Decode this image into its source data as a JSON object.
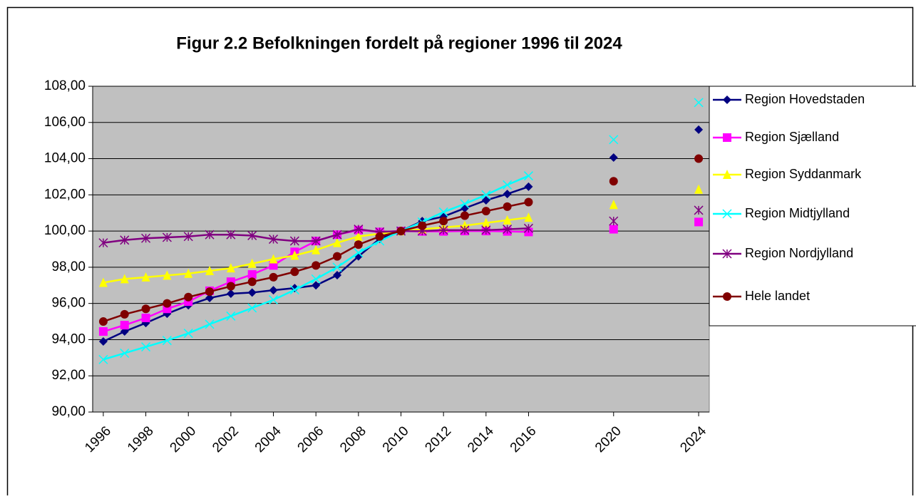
{
  "chart_data": {
    "type": "line",
    "title": "Figur 2.2 Befolkningen fordelt på regioner 1996 til 2024",
    "x": [
      1996,
      1997,
      1998,
      1999,
      2000,
      2001,
      2002,
      2003,
      2004,
      2005,
      2006,
      2007,
      2008,
      2009,
      2010,
      2011,
      2012,
      2013,
      2014,
      2015,
      2016,
      2018,
      2020,
      2022,
      2024
    ],
    "xlim": [
      1995.5,
      2024.5
    ],
    "xticks": [
      1996,
      1998,
      2000,
      2002,
      2004,
      2006,
      2008,
      2010,
      2012,
      2014,
      2016,
      2020,
      2024
    ],
    "ylim": [
      90,
      108
    ],
    "yticks": [
      {
        "value": 90,
        "label": "90,00"
      },
      {
        "value": 92,
        "label": "92,00"
      },
      {
        "value": 94,
        "label": "94,00"
      },
      {
        "value": 96,
        "label": "96,00"
      },
      {
        "value": 98,
        "label": "98,00"
      },
      {
        "value": 100,
        "label": "100,00"
      },
      {
        "value": 102,
        "label": "102,00"
      },
      {
        "value": 104,
        "label": "104,00"
      },
      {
        "value": 106,
        "label": "106,00"
      },
      {
        "value": 108,
        "label": "108,00"
      }
    ],
    "grid": true,
    "legend": "right",
    "series": [
      {
        "name": "Region Hovedstaden",
        "color": "#000080",
        "marker": "diamond",
        "values": [
          93.9,
          94.45,
          94.92,
          95.43,
          95.9,
          96.3,
          96.54,
          96.6,
          96.73,
          96.85,
          97.0,
          97.56,
          98.6,
          99.57,
          100,
          100.55,
          100.8,
          101.26,
          101.7,
          102.05,
          102.45,
          null,
          104.06,
          null,
          105.6
        ]
      },
      {
        "name": "Region Sjælland",
        "color": "#ff00ff",
        "marker": "square",
        "values": [
          94.45,
          94.8,
          95.2,
          95.7,
          96.1,
          96.7,
          97.2,
          97.6,
          98.1,
          98.85,
          99.45,
          99.8,
          100.05,
          99.95,
          100,
          99.98,
          99.98,
          100.0,
          100.0,
          99.98,
          99.95,
          null,
          100.1,
          null,
          100.5
        ]
      },
      {
        "name": "Region Syddanmark",
        "color": "#ffff00",
        "marker": "triangle",
        "values": [
          97.15,
          97.35,
          97.45,
          97.55,
          97.65,
          97.8,
          97.95,
          98.2,
          98.45,
          98.65,
          98.95,
          99.35,
          99.7,
          99.85,
          100,
          100.1,
          100.2,
          100.3,
          100.45,
          100.6,
          100.75,
          null,
          101.45,
          null,
          102.3
        ]
      },
      {
        "name": "Region Midtjylland",
        "color": "#00ffff",
        "marker": "x",
        "values": [
          92.9,
          93.25,
          93.6,
          93.95,
          94.35,
          94.85,
          95.3,
          95.75,
          96.2,
          96.75,
          97.35,
          98.0,
          98.8,
          99.45,
          100,
          100.5,
          101.05,
          101.5,
          102.0,
          102.55,
          103.05,
          null,
          105.05,
          null,
          107.1
        ]
      },
      {
        "name": "Region Nordjylland",
        "color": "#800080",
        "marker": "star",
        "values": [
          99.35,
          99.5,
          99.6,
          99.65,
          99.7,
          99.8,
          99.8,
          99.75,
          99.55,
          99.45,
          99.45,
          99.8,
          100.1,
          99.95,
          100,
          100.0,
          100.05,
          100.05,
          100.05,
          100.1,
          100.15,
          null,
          100.55,
          null,
          101.15
        ]
      },
      {
        "name": "Hele landet",
        "color": "#800000",
        "marker": "circle",
        "values": [
          95.0,
          95.4,
          95.7,
          96.0,
          96.35,
          96.65,
          96.95,
          97.2,
          97.45,
          97.75,
          98.1,
          98.6,
          99.25,
          99.7,
          100,
          100.3,
          100.55,
          100.85,
          101.1,
          101.35,
          101.6,
          null,
          102.75,
          null,
          104.0
        ]
      }
    ]
  }
}
